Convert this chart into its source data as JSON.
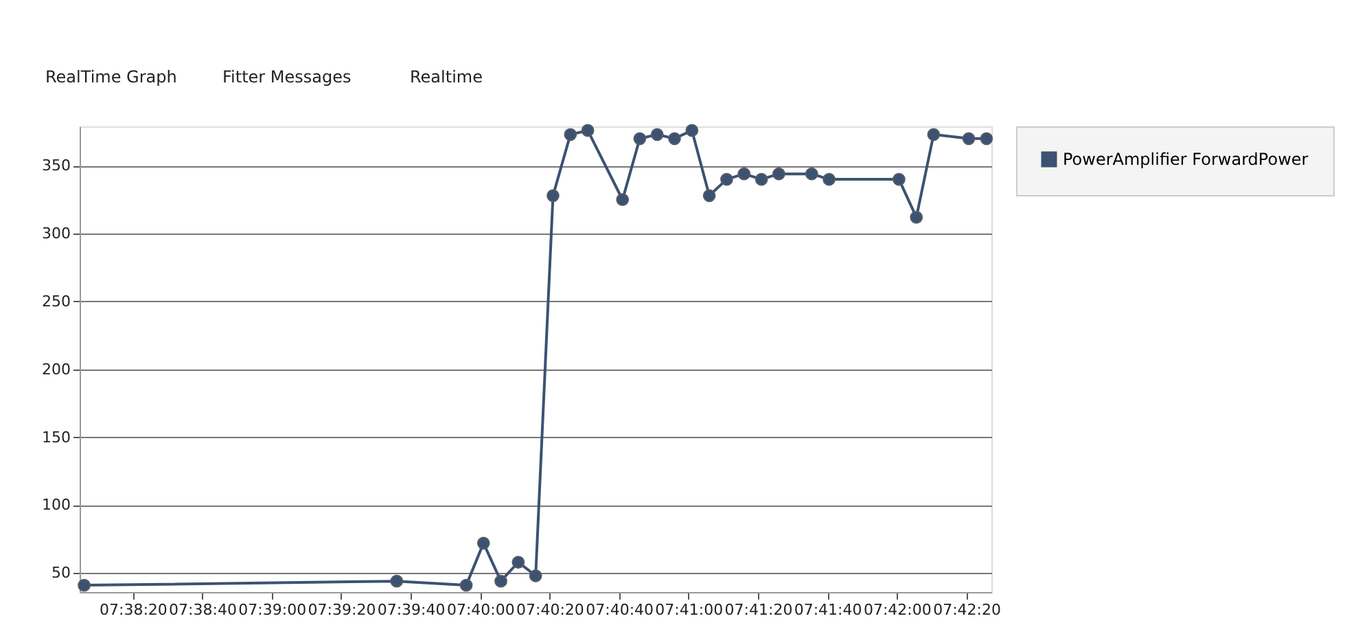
{
  "chart_data": {
    "type": "line",
    "annotations": [
      "RealTime Graph",
      "Fitter Messages",
      "Realtime"
    ],
    "x": [
      7.635,
      7.66,
      7.66556,
      7.66694,
      7.66833,
      7.66972,
      7.67111,
      7.6725,
      7.67389,
      7.67528,
      7.67806,
      7.67944,
      7.68083,
      7.68222,
      7.68361,
      7.685,
      7.68639,
      7.68778,
      7.68917,
      7.69056,
      7.69319,
      7.69458,
      7.70017,
      7.70156,
      7.70294,
      7.70575,
      7.70717
    ],
    "series": [
      {
        "name": "PowerAmplifier ForwardPower",
        "color": "#3b5272",
        "values": [
          41,
          44,
          41,
          72,
          44,
          58,
          48,
          328,
          373,
          376,
          325,
          370,
          373,
          370,
          376,
          328,
          340,
          344,
          340,
          344,
          344,
          340,
          340,
          312,
          373,
          370,
          370
        ]
      }
    ],
    "xlim": [
      7.63464,
      7.70756
    ],
    "xticks": [
      {
        "value": 7.63889,
        "label": "07:38:20"
      },
      {
        "value": 7.64444,
        "label": "07:38:40"
      },
      {
        "value": 7.65,
        "label": "07:39:00"
      },
      {
        "value": 7.65556,
        "label": "07:39:20"
      },
      {
        "value": 7.66111,
        "label": "07:39:40"
      },
      {
        "value": 7.66667,
        "label": "07:40:00"
      },
      {
        "value": 7.67222,
        "label": "07:40:20"
      },
      {
        "value": 7.67778,
        "label": "07:40:40"
      },
      {
        "value": 7.68333,
        "label": "07:41:00"
      },
      {
        "value": 7.68889,
        "label": "07:41:20"
      },
      {
        "value": 7.69444,
        "label": "07:41:40"
      },
      {
        "value": 7.7,
        "label": "07:42:00"
      },
      {
        "value": 7.70556,
        "label": "07:42:20"
      }
    ],
    "ylim": [
      36,
      379
    ],
    "yticks": [
      50,
      100,
      150,
      200,
      250,
      300,
      350
    ],
    "grid": "y",
    "legend": "right",
    "marker": "circle",
    "line_style": "solid"
  }
}
